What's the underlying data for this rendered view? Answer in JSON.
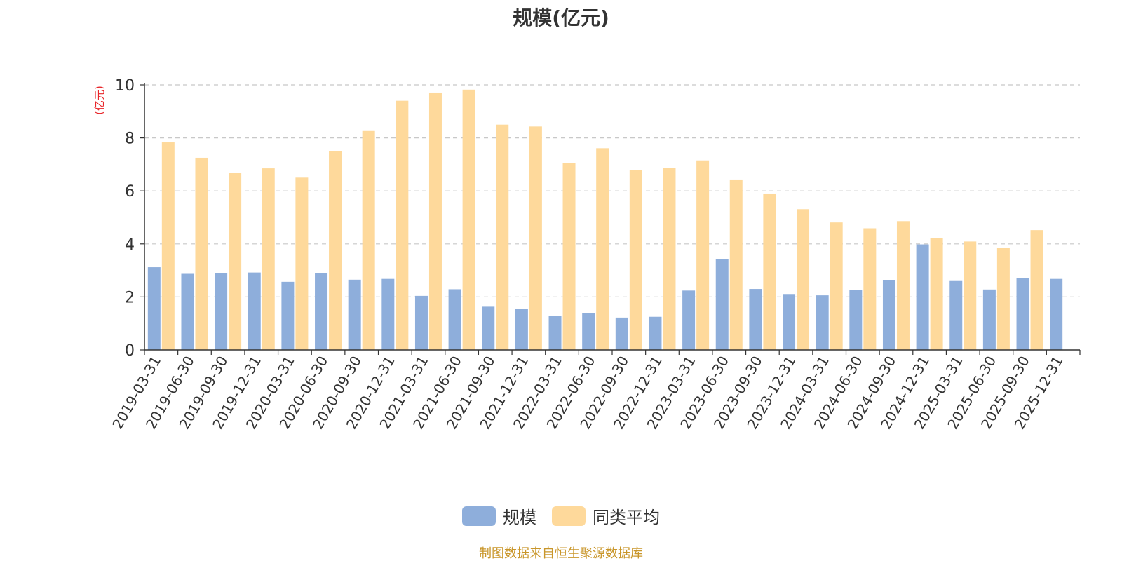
{
  "chart_data": {
    "type": "bar",
    "title": "规模(亿元)",
    "ylabel": "(亿元)",
    "xlabel": "",
    "ylim": [
      0,
      10
    ],
    "yticks": [
      "0",
      "2",
      "4",
      "6",
      "8",
      "10"
    ],
    "grid": true,
    "legend_position": "bottom-center",
    "categories": [
      "2019-03-31",
      "2019-06-30",
      "2019-09-30",
      "2019-12-31",
      "2020-03-31",
      "2020-06-30",
      "2020-09-30",
      "2020-12-31",
      "2021-03-31",
      "2021-06-30",
      "2021-09-30",
      "2021-12-31",
      "2022-03-31",
      "2022-06-30",
      "2022-09-30",
      "2022-12-31",
      "2023-03-31",
      "2023-06-30",
      "2023-09-30",
      "2023-12-31",
      "2024-03-31",
      "2024-06-30",
      "2024-09-30",
      "2024-12-31",
      "2025-03-31",
      "2025-06-30",
      "2025-09-30",
      "2025-12-31"
    ],
    "series": [
      {
        "name": "规模",
        "color": "#8eaedb",
        "values": [
          3.12,
          2.87,
          2.91,
          2.92,
          2.57,
          2.89,
          2.65,
          2.68,
          2.04,
          2.29,
          1.63,
          1.55,
          1.27,
          1.4,
          1.22,
          1.25,
          2.24,
          3.42,
          2.3,
          2.11,
          2.06,
          2.25,
          2.62,
          3.98,
          2.6,
          2.28,
          2.71,
          2.68
        ]
      },
      {
        "name": "同类平均",
        "color": "#fed99b",
        "values": [
          7.83,
          7.25,
          6.67,
          6.85,
          6.5,
          7.51,
          8.26,
          9.4,
          9.71,
          9.82,
          8.5,
          8.43,
          7.06,
          7.61,
          6.78,
          6.86,
          7.15,
          6.43,
          5.9,
          5.31,
          4.81,
          4.59,
          4.86,
          4.21,
          4.09,
          3.86,
          4.52,
          null
        ]
      }
    ]
  },
  "footer": {
    "source": "制图数据来自恒生聚源数据库"
  }
}
